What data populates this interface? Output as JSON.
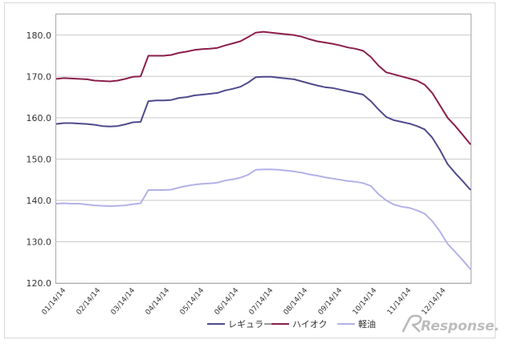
{
  "chart_data": {
    "type": "line",
    "title": "",
    "xlabel": "",
    "ylabel": "",
    "ylim": [
      120,
      185
    ],
    "yticks": [
      "120.0",
      "130.0",
      "140.0",
      "150.0",
      "160.0",
      "170.0",
      "180.0"
    ],
    "ytick_values": [
      120,
      130,
      140,
      150,
      160,
      170,
      180
    ],
    "xtick_labels": [
      "01/14/14",
      "02/14/14",
      "03/14/14",
      "04/14/14",
      "05/14/14",
      "06/14/14",
      "07/14/14",
      "08/14/14",
      "09/14/14",
      "10/14/14",
      "11/14/14",
      "12/14/14"
    ],
    "x_points_per_month": 4.33,
    "legend_position": "bottom",
    "series": [
      {
        "name": "レギュラー",
        "color": "#4f4a8c",
        "values": [
          158.5,
          158.7,
          158.7,
          158.6,
          158.5,
          158.3,
          158.0,
          157.9,
          158.0,
          158.4,
          158.9,
          159.0,
          164.0,
          164.2,
          164.2,
          164.3,
          164.8,
          165.0,
          165.4,
          165.6,
          165.8,
          166.0,
          166.6,
          167.0,
          167.5,
          168.5,
          169.8,
          169.9,
          169.9,
          169.7,
          169.5,
          169.3,
          168.8,
          168.3,
          167.8,
          167.4,
          167.2,
          166.8,
          166.4,
          166.0,
          165.6,
          164.0,
          162.0,
          160.2,
          159.4,
          159.0,
          158.6,
          158.0,
          157.2,
          155.2,
          152.2,
          148.8,
          146.6,
          144.6,
          142.5
        ]
      },
      {
        "name": "ハイオク",
        "color": "#8a1e4a",
        "values": [
          169.4,
          169.6,
          169.5,
          169.4,
          169.3,
          169.0,
          168.9,
          168.8,
          169.0,
          169.4,
          169.9,
          170.0,
          175.0,
          175.0,
          175.0,
          175.2,
          175.7,
          176.0,
          176.4,
          176.6,
          176.7,
          176.9,
          177.5,
          178.0,
          178.5,
          179.5,
          180.6,
          180.8,
          180.6,
          180.4,
          180.2,
          180.0,
          179.6,
          179.0,
          178.5,
          178.2,
          177.9,
          177.5,
          177.0,
          176.7,
          176.2,
          174.7,
          172.6,
          171.0,
          170.5,
          170.0,
          169.5,
          169.0,
          168.0,
          166.0,
          163.0,
          160.0,
          158.0,
          155.8,
          153.5
        ]
      },
      {
        "name": "軽油",
        "color": "#b3b1e8",
        "values": [
          139.2,
          139.3,
          139.2,
          139.2,
          139.0,
          138.8,
          138.7,
          138.6,
          138.7,
          138.8,
          139.1,
          139.3,
          142.5,
          142.5,
          142.5,
          142.6,
          143.1,
          143.5,
          143.8,
          144.0,
          144.1,
          144.3,
          144.8,
          145.1,
          145.5,
          146.2,
          147.4,
          147.5,
          147.5,
          147.4,
          147.2,
          147.0,
          146.7,
          146.3,
          146.0,
          145.6,
          145.3,
          145.0,
          144.7,
          144.5,
          144.2,
          143.5,
          141.5,
          140.0,
          139.0,
          138.5,
          138.2,
          137.6,
          136.8,
          135.0,
          132.5,
          129.5,
          127.5,
          125.5,
          123.3
        ]
      }
    ]
  },
  "watermark": {
    "text": "Response."
  }
}
